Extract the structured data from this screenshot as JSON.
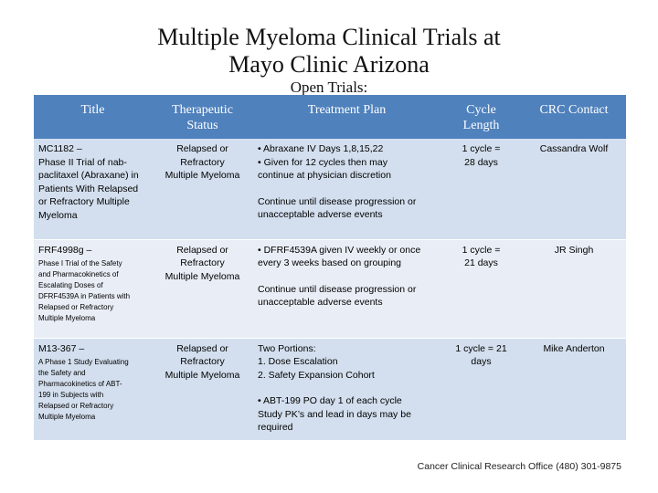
{
  "slide": {
    "title_line1": "Multiple Myeloma Clinical Trials at",
    "title_line2": "Mayo Clinic Arizona",
    "subtitle": "Open Trials:"
  },
  "table": {
    "headers": {
      "title": "Title",
      "status_line1": "Therapeutic",
      "status_line2": "Status",
      "plan": "Treatment Plan",
      "cycle_line1": "Cycle",
      "cycle_line2": "Length",
      "contact": "CRC Contact"
    },
    "rows": [
      {
        "title_lines": [
          "MC1182 –",
          "Phase II Trial of nab-",
          "paclitaxel (Abraxane) in",
          "Patients With Relapsed",
          "or Refractory Multiple",
          "Myeloma"
        ],
        "status_lines": [
          "Relapsed or",
          "Refractory",
          "Multiple Myeloma"
        ],
        "plan_lines_a": [
          "• Abraxane IV Days 1,8,15,22",
          "• Given for 12 cycles then may",
          "continue at physician discretion"
        ],
        "plan_lines_b": [
          "Continue until disease progression or",
          "unacceptable adverse events"
        ],
        "cycle_lines": [
          "1 cycle =",
          "28 days"
        ],
        "contact": "Cassandra Wolf"
      },
      {
        "title_main": "FRF4998g –",
        "title_small_lines": [
          "Phase I Trial of the Safety",
          "and Pharmacokinetics of",
          "Escalating Doses of",
          "DFRF4539A in Patients with",
          "Relapsed or Refractory",
          "Multiple Myeloma"
        ],
        "status_lines": [
          "Relapsed or",
          "Refractory",
          "Multiple Myeloma"
        ],
        "plan_lines_a": [
          "• DFRF4539A given IV weekly or once",
          "every 3 weeks based on grouping"
        ],
        "plan_lines_b": [
          "Continue until disease progression or",
          "unacceptable adverse events"
        ],
        "cycle_lines": [
          "1 cycle =",
          "21 days"
        ],
        "contact": "JR Singh"
      },
      {
        "title_main": "M13-367 –",
        "title_small_lines": [
          "A Phase 1 Study Evaluating",
          "the Safety and",
          "Pharmacokinetics of ABT-",
          "199 in Subjects with",
          "Relapsed or Refractory",
          "Multiple Myeloma"
        ],
        "status_lines": [
          "Relapsed or",
          "Refractory",
          "Multiple Myeloma"
        ],
        "plan_lines_a": [
          "Two Portions:",
          "1. Dose Escalation",
          "2. Safety Expansion Cohort"
        ],
        "plan_lines_b": [
          "• ABT-199 PO day 1 of each cycle",
          "Study PK’s and lead in days may be",
          "required"
        ],
        "cycle_lines": [
          "1 cycle = 21",
          "days"
        ],
        "contact": "Mike Anderton"
      }
    ]
  },
  "footer": "Cancer Clinical Research Office (480) 301-9875"
}
